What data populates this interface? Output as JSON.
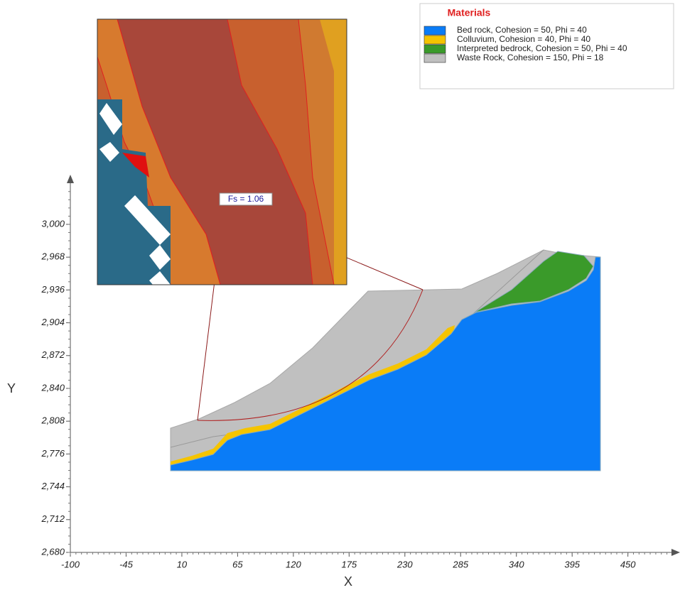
{
  "chart_data": {
    "type": "slope",
    "xlabel": "X",
    "ylabel": "Y",
    "xlim": [
      -100,
      500
    ],
    "ylim": [
      2680,
      3045
    ],
    "xticks": [
      -100,
      -45,
      10,
      65,
      120,
      175,
      230,
      285,
      340,
      395,
      450
    ],
    "yticks": [
      {
        "value": 2680,
        "label": "2,680"
      },
      {
        "value": 2712,
        "label": "2,712"
      },
      {
        "value": 2744,
        "label": "2,744"
      },
      {
        "value": 2776,
        "label": "2,776"
      },
      {
        "value": 2808,
        "label": "2,808"
      },
      {
        "value": 2840,
        "label": "2,840"
      },
      {
        "value": 2872,
        "label": "2,872"
      },
      {
        "value": 2904,
        "label": "2,904"
      },
      {
        "value": 2936,
        "label": "2,936"
      },
      {
        "value": 2968,
        "label": "2,968"
      },
      {
        "value": 3000,
        "label": "3,000"
      }
    ],
    "legend": {
      "title": "Materials",
      "position": "upper right"
    },
    "series": [
      {
        "name": "Bed rock, Cohesion = 50, Phi = 40",
        "color": "#0a7cf7"
      },
      {
        "name": "Colluvium, Cohesion = 40, Phi = 40",
        "color": "#f5c400"
      },
      {
        "name": "Interpreted bedrock, Cohesion = 50, Phi = 40",
        "color": "#3a9a2a"
      },
      {
        "name": "Waste Rock, Cohesion = 150, Phi = 18",
        "color": "#c0c0c0"
      }
    ],
    "annotation": "Fs = 1.06"
  }
}
